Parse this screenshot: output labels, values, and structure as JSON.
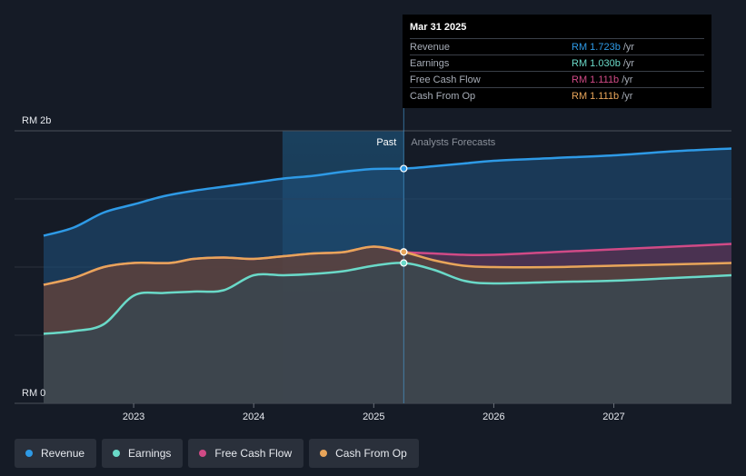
{
  "colors": {
    "revenue": "#2e9ae6",
    "earnings": "#6ad9c8",
    "free_cash_flow": "#d04a86",
    "cash_from_op": "#e8a55a",
    "background": "#151b26"
  },
  "tooltip": {
    "date": "Mar 31 2025",
    "rows": [
      {
        "label": "Revenue",
        "value": "RM 1.723b",
        "unit": "/yr",
        "color": "#2e9ae6"
      },
      {
        "label": "Earnings",
        "value": "RM 1.030b",
        "unit": "/yr",
        "color": "#6ad9c8"
      },
      {
        "label": "Free Cash Flow",
        "value": "RM 1.111b",
        "unit": "/yr",
        "color": "#d04a86"
      },
      {
        "label": "Cash From Op",
        "value": "RM 1.111b",
        "unit": "/yr",
        "color": "#e8a55a"
      }
    ]
  },
  "legend": [
    {
      "label": "Revenue",
      "color": "#2e9ae6"
    },
    {
      "label": "Earnings",
      "color": "#6ad9c8"
    },
    {
      "label": "Free Cash Flow",
      "color": "#d04a86"
    },
    {
      "label": "Cash From Op",
      "color": "#e8a55a"
    }
  ],
  "chart_data": {
    "type": "area",
    "title": "",
    "xlabel": "",
    "ylabel": "",
    "ylim": [
      0,
      2.0
    ],
    "xlim": [
      2022.18,
      2027.98
    ],
    "y_tick_labels": [
      {
        "value": 2.0,
        "label": "RM 2b"
      },
      {
        "value": 0,
        "label": "RM 0"
      }
    ],
    "x_ticks": [
      {
        "value": 2023,
        "label": "2023"
      },
      {
        "value": 2024,
        "label": "2024"
      },
      {
        "value": 2025,
        "label": "2025"
      },
      {
        "value": 2026,
        "label": "2026"
      },
      {
        "value": 2027,
        "label": "2027"
      }
    ],
    "past_start": 2024.24,
    "divider": 2025.25,
    "past_label": "Past",
    "forecast_label": "Analysts Forecasts",
    "series": [
      {
        "name": "Revenue",
        "key": "revenue",
        "points": [
          [
            2022.25,
            1.23
          ],
          [
            2022.5,
            1.29
          ],
          [
            2022.75,
            1.4
          ],
          [
            2023.0,
            1.46
          ],
          [
            2023.25,
            1.52
          ],
          [
            2023.5,
            1.56
          ],
          [
            2023.75,
            1.59
          ],
          [
            2024.0,
            1.62
          ],
          [
            2024.25,
            1.65
          ],
          [
            2024.5,
            1.67
          ],
          [
            2024.75,
            1.7
          ],
          [
            2025.0,
            1.72
          ],
          [
            2025.25,
            1.723
          ],
          [
            2025.5,
            1.74
          ],
          [
            2025.75,
            1.76
          ],
          [
            2026.0,
            1.78
          ],
          [
            2026.5,
            1.8
          ],
          [
            2027.0,
            1.82
          ],
          [
            2027.5,
            1.85
          ],
          [
            2027.98,
            1.87
          ]
        ]
      },
      {
        "name": "Free Cash Flow",
        "key": "free_cash_flow",
        "points": [
          [
            2022.25,
            0.87
          ],
          [
            2022.5,
            0.92
          ],
          [
            2022.75,
            1.0
          ],
          [
            2023.0,
            1.03
          ],
          [
            2023.3,
            1.03
          ],
          [
            2023.5,
            1.06
          ],
          [
            2023.75,
            1.07
          ],
          [
            2024.0,
            1.06
          ],
          [
            2024.25,
            1.08
          ],
          [
            2024.5,
            1.1
          ],
          [
            2024.75,
            1.11
          ],
          [
            2025.0,
            1.15
          ],
          [
            2025.25,
            1.111
          ],
          [
            2025.5,
            1.1
          ],
          [
            2025.75,
            1.09
          ],
          [
            2026.0,
            1.09
          ],
          [
            2026.5,
            1.11
          ],
          [
            2027.0,
            1.13
          ],
          [
            2027.5,
            1.15
          ],
          [
            2027.98,
            1.17
          ]
        ]
      },
      {
        "name": "Cash From Op",
        "key": "cash_from_op",
        "points": [
          [
            2022.25,
            0.87
          ],
          [
            2022.5,
            0.92
          ],
          [
            2022.75,
            1.0
          ],
          [
            2023.0,
            1.03
          ],
          [
            2023.3,
            1.03
          ],
          [
            2023.5,
            1.06
          ],
          [
            2023.75,
            1.07
          ],
          [
            2024.0,
            1.06
          ],
          [
            2024.25,
            1.08
          ],
          [
            2024.5,
            1.1
          ],
          [
            2024.75,
            1.11
          ],
          [
            2025.0,
            1.15
          ],
          [
            2025.25,
            1.111
          ],
          [
            2025.5,
            1.05
          ],
          [
            2025.75,
            1.01
          ],
          [
            2026.0,
            1.0
          ],
          [
            2026.5,
            1.0
          ],
          [
            2027.0,
            1.01
          ],
          [
            2027.5,
            1.02
          ],
          [
            2027.98,
            1.03
          ]
        ]
      },
      {
        "name": "Earnings",
        "key": "earnings",
        "points": [
          [
            2022.25,
            0.51
          ],
          [
            2022.5,
            0.53
          ],
          [
            2022.75,
            0.58
          ],
          [
            2023.0,
            0.79
          ],
          [
            2023.25,
            0.81
          ],
          [
            2023.5,
            0.82
          ],
          [
            2023.75,
            0.83
          ],
          [
            2024.0,
            0.94
          ],
          [
            2024.25,
            0.94
          ],
          [
            2024.5,
            0.95
          ],
          [
            2024.75,
            0.97
          ],
          [
            2025.0,
            1.01
          ],
          [
            2025.25,
            1.03
          ],
          [
            2025.5,
            0.98
          ],
          [
            2025.75,
            0.9
          ],
          [
            2026.0,
            0.88
          ],
          [
            2026.5,
            0.89
          ],
          [
            2027.0,
            0.9
          ],
          [
            2027.5,
            0.92
          ],
          [
            2027.98,
            0.94
          ]
        ]
      }
    ]
  }
}
